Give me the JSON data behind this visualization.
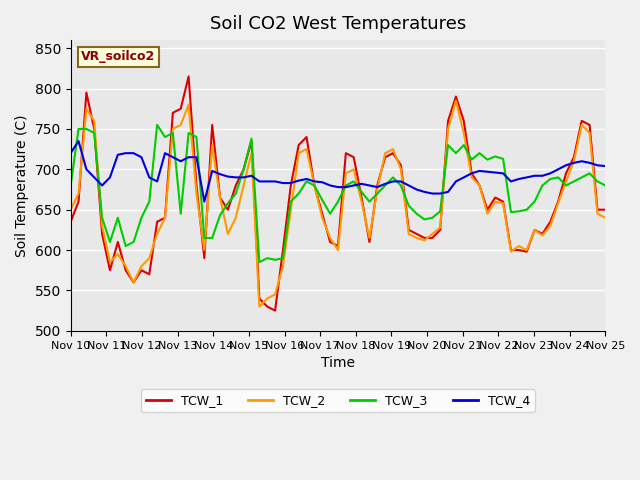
{
  "title": "Soil CO2 West Temperatures",
  "xlabel": "Time",
  "ylabel": "Soil Temperature (C)",
  "ylim": [
    500,
    860
  ],
  "yticks": [
    500,
    550,
    600,
    650,
    700,
    750,
    800,
    850
  ],
  "xtick_labels": [
    "Nov 10",
    "Nov 11",
    "Nov 12",
    "Nov 13",
    "Nov 14",
    "Nov 15",
    "Nov 16",
    "Nov 17",
    "Nov 18",
    "Nov 19",
    "Nov 20",
    "Nov 21",
    "Nov 22",
    "Nov 23",
    "Nov 24",
    "Nov 25"
  ],
  "legend_label": "VR_soilco2",
  "series_labels": [
    "TCW_1",
    "TCW_2",
    "TCW_3",
    "TCW_4"
  ],
  "colors": [
    "#dd0000",
    "#ff9900",
    "#00cc00",
    "#0000dd"
  ],
  "background_color": "#e8e8e8",
  "plot_bg_color": "#e8e8e8",
  "TCW_1": [
    635,
    660,
    795,
    750,
    620,
    575,
    610,
    575,
    560,
    575,
    570,
    635,
    640,
    770,
    775,
    815,
    680,
    590,
    755,
    665,
    650,
    680,
    700,
    735,
    540,
    530,
    525,
    600,
    680,
    730,
    740,
    680,
    645,
    610,
    605,
    720,
    715,
    665,
    610,
    680,
    715,
    720,
    705,
    625,
    620,
    615,
    615,
    625,
    760,
    790,
    760,
    695,
    680,
    650,
    665,
    660,
    600,
    600,
    598,
    625,
    620,
    635,
    660,
    695,
    715,
    760,
    755,
    650,
    650
  ],
  "TCW_2": [
    650,
    670,
    775,
    760,
    630,
    585,
    595,
    580,
    560,
    580,
    590,
    620,
    640,
    750,
    755,
    780,
    670,
    600,
    730,
    665,
    620,
    640,
    680,
    720,
    530,
    540,
    545,
    580,
    650,
    720,
    725,
    680,
    640,
    615,
    600,
    695,
    700,
    660,
    615,
    675,
    720,
    725,
    700,
    620,
    615,
    612,
    620,
    628,
    750,
    785,
    745,
    690,
    680,
    645,
    660,
    658,
    598,
    605,
    600,
    625,
    618,
    630,
    658,
    685,
    710,
    755,
    745,
    645,
    640
  ],
  "TCW_3": [
    680,
    750,
    750,
    745,
    640,
    610,
    640,
    605,
    610,
    640,
    660,
    755,
    740,
    745,
    645,
    745,
    740,
    615,
    615,
    643,
    658,
    670,
    700,
    738,
    585,
    590,
    588,
    590,
    660,
    670,
    685,
    680,
    662,
    645,
    660,
    680,
    685,
    672,
    660,
    670,
    680,
    690,
    680,
    655,
    645,
    638,
    640,
    648,
    730,
    720,
    730,
    712,
    720,
    712,
    716,
    713,
    647,
    648,
    650,
    660,
    680,
    688,
    690,
    680,
    685,
    690,
    695,
    685,
    680
  ],
  "TCW_4": [
    720,
    735,
    700,
    690,
    680,
    690,
    718,
    720,
    720,
    715,
    690,
    685,
    720,
    715,
    710,
    715,
    715,
    660,
    698,
    694,
    691,
    690,
    690,
    692,
    685,
    685,
    685,
    683,
    683,
    686,
    688,
    685,
    684,
    680,
    678,
    678,
    680,
    682,
    680,
    678,
    682,
    685,
    685,
    680,
    675,
    672,
    670,
    670,
    672,
    685,
    690,
    695,
    698,
    697,
    696,
    695,
    685,
    688,
    690,
    692,
    692,
    695,
    700,
    705,
    708,
    710,
    708,
    705,
    704
  ]
}
